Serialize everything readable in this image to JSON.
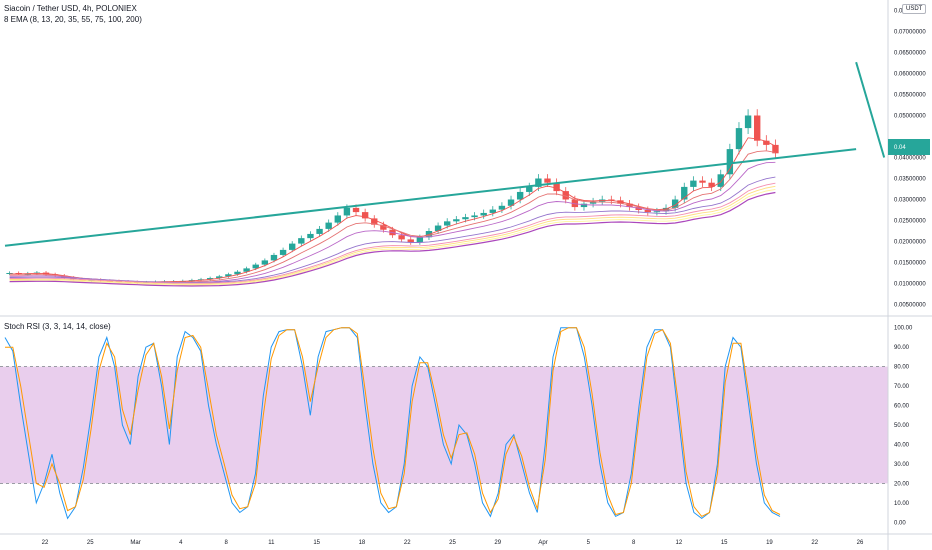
{
  "header": {
    "symbol_line": "Siacoin / Tether USD, 4h, POLONIEX",
    "ema_line": "8 EMA (8, 13, 20, 35, 55, 75, 100, 200)",
    "rsi_line": "Stoch RSI (3, 3, 14, 14, close)",
    "currency": "USDT"
  },
  "price_badge": {
    "value": "0.04",
    "countdown": "",
    "color": "#26a69a"
  },
  "chart_data": [
    {
      "type": "candlestick",
      "title": "Siacoin / Tether USD, 4h, POLONIEX",
      "y_ticks": [
        "0.07500000",
        "0.07000000",
        "0.06500000",
        "0.06000000",
        "0.05500000",
        "0.05000000",
        "0.04000000",
        "0.03500000",
        "0.03000000",
        "0.02500000",
        "0.02000000",
        "0.01500000",
        "0.01000000",
        "0.00500000"
      ],
      "ylim": [
        0.0025,
        0.0775
      ],
      "x_ticks": [
        "22",
        "25",
        "Mar",
        "4",
        "8",
        "11",
        "15",
        "18",
        "22",
        "25",
        "29",
        "Apr",
        "5",
        "8",
        "12",
        "15",
        "19",
        "22",
        "26"
      ],
      "close": [
        0.0125,
        0.0123,
        0.0124,
        0.0126,
        0.0122,
        0.0119,
        0.0114,
        0.011,
        0.0108,
        0.0109,
        0.0107,
        0.0106,
        0.0105,
        0.0104,
        0.0103,
        0.0103,
        0.0104,
        0.0105,
        0.0105,
        0.0106,
        0.0108,
        0.011,
        0.0113,
        0.0117,
        0.0122,
        0.0128,
        0.0136,
        0.0145,
        0.0155,
        0.0168,
        0.018,
        0.0195,
        0.0208,
        0.0218,
        0.023,
        0.0245,
        0.0262,
        0.028,
        0.027,
        0.0255,
        0.024,
        0.0228,
        0.0215,
        0.0205,
        0.0198,
        0.021,
        0.0225,
        0.0238,
        0.0248,
        0.0253,
        0.0258,
        0.0262,
        0.0268,
        0.0276,
        0.0285,
        0.03,
        0.0318,
        0.033,
        0.035,
        0.034,
        0.032,
        0.03,
        0.0282,
        0.029,
        0.0295,
        0.03,
        0.0298,
        0.029,
        0.0282,
        0.0275,
        0.027,
        0.0272,
        0.028,
        0.03,
        0.033,
        0.0345,
        0.034,
        0.033,
        0.036,
        0.042,
        0.047,
        0.05,
        0.044,
        0.043,
        0.041
      ],
      "ema_series": [
        {
          "name": "EMA 8",
          "color": "#ef5350"
        },
        {
          "name": "EMA 13",
          "color": "#e57373"
        },
        {
          "name": "EMA 20",
          "color": "#ba68c8"
        },
        {
          "name": "EMA 35",
          "color": "#9575cd"
        },
        {
          "name": "EMA 55",
          "color": "#f48fb1"
        },
        {
          "name": "EMA 75",
          "color": "#ffe082"
        },
        {
          "name": "EMA 100",
          "color": "#fff59d"
        },
        {
          "name": "EMA 200",
          "color": "#ab47bc"
        }
      ],
      "trendlines": [
        {
          "from": [
            0,
            0.019
          ],
          "to": [
            91,
            0.042
          ],
          "color": "#26a69a"
        },
        {
          "from": [
            91,
            0.0627
          ],
          "to": [
            94,
            0.04
          ],
          "color": "#26a69a"
        }
      ]
    },
    {
      "type": "line",
      "title": "Stoch RSI (3, 3, 14, 14, close)",
      "y_ticks": [
        "100.00",
        "90.00",
        "80.00",
        "70.00",
        "60.00",
        "50.00",
        "40.00",
        "30.00",
        "20.00",
        "10.00",
        "0.00"
      ],
      "ylim": [
        -5,
        105
      ],
      "band": [
        20,
        80
      ],
      "x": [
        0,
        2,
        4,
        6,
        8,
        10,
        12,
        14,
        16,
        18,
        20,
        22,
        24,
        26,
        28,
        30,
        32,
        34,
        36,
        38,
        40,
        42,
        44,
        46,
        48,
        50,
        52,
        54,
        56,
        58,
        60,
        62,
        64,
        66,
        68,
        70,
        72,
        74,
        76,
        78,
        80,
        82,
        84,
        86,
        88,
        90,
        92,
        94,
        96,
        98,
        100,
        102,
        104,
        106,
        108,
        110,
        112,
        114,
        116,
        118,
        120,
        122,
        124,
        126,
        128,
        130,
        132,
        134,
        136,
        138,
        140,
        142,
        144,
        146,
        148,
        150,
        152,
        154,
        156,
        158,
        160,
        162,
        164,
        166,
        168,
        170,
        172,
        174,
        176,
        178,
        180,
        182,
        184,
        186,
        188,
        190,
        192,
        194,
        196,
        198
      ],
      "series": [
        {
          "name": "%K",
          "color": "#2196f3",
          "values": [
            95,
            88,
            60,
            35,
            10,
            20,
            35,
            15,
            2,
            8,
            28,
            55,
            85,
            95,
            80,
            50,
            40,
            75,
            90,
            92,
            70,
            40,
            85,
            98,
            95,
            88,
            60,
            40,
            25,
            10,
            5,
            8,
            25,
            65,
            90,
            98,
            99,
            99,
            80,
            55,
            85,
            98,
            99,
            100,
            100,
            95,
            60,
            30,
            10,
            5,
            8,
            30,
            70,
            85,
            80,
            60,
            40,
            30,
            50,
            45,
            30,
            10,
            3,
            15,
            40,
            45,
            30,
            15,
            5,
            40,
            85,
            100,
            100,
            100,
            85,
            60,
            30,
            10,
            3,
            5,
            25,
            60,
            90,
            99,
            99,
            90,
            55,
            20,
            5,
            2,
            5,
            30,
            80,
            95,
            90,
            60,
            30,
            10,
            5,
            3
          ]
        },
        {
          "name": "%D",
          "color": "#ff9800",
          "values": [
            90,
            90,
            70,
            45,
            20,
            18,
            30,
            20,
            6,
            8,
            22,
            48,
            78,
            92,
            85,
            58,
            45,
            68,
            86,
            92,
            75,
            48,
            78,
            95,
            96,
            90,
            68,
            45,
            30,
            14,
            7,
            8,
            20,
            55,
            84,
            96,
            99,
            99,
            85,
            62,
            80,
            95,
            99,
            100,
            100,
            97,
            68,
            38,
            15,
            7,
            8,
            25,
            62,
            82,
            82,
            65,
            45,
            33,
            45,
            46,
            35,
            15,
            5,
            12,
            35,
            44,
            34,
            18,
            7,
            32,
            78,
            98,
            100,
            100,
            90,
            66,
            36,
            14,
            4,
            5,
            20,
            54,
            85,
            97,
            99,
            92,
            62,
            26,
            8,
            3,
            5,
            25,
            72,
            92,
            92,
            66,
            36,
            14,
            6,
            4
          ]
        }
      ]
    }
  ]
}
